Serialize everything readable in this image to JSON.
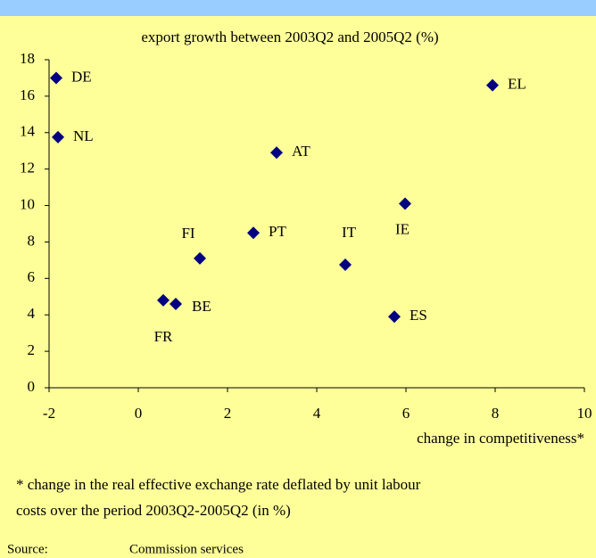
{
  "chart_data": {
    "type": "scatter",
    "title": "export growth between  2003Q2 and 2005Q2 (%)",
    "x_label": "change in competitiveness*",
    "labels": [
      "DE",
      "NL",
      "AT",
      "EL",
      "IE",
      "PT",
      "FI",
      "IT",
      "FR",
      "BE",
      "ES"
    ],
    "x": [
      -1.84,
      -1.8,
      3.1,
      7.94,
      5.98,
      2.58,
      1.38,
      4.64,
      0.56,
      0.84,
      5.74
    ],
    "values": [
      17.0,
      13.75,
      12.9,
      16.6,
      10.1,
      8.5,
      7.1,
      6.75,
      4.8,
      4.6,
      3.9
    ],
    "color": "#000080",
    "xlim": [
      -2,
      10
    ],
    "xticks": [
      -2,
      0,
      2,
      4,
      6,
      8,
      10
    ],
    "ylim": [
      0,
      18
    ],
    "yticks": [
      0,
      2,
      4,
      6,
      8,
      10,
      12,
      14,
      16,
      18
    ],
    "footnote": [
      "* change in the real effective exchange rate deflated by unit labour",
      "costs over the period 2003Q2-2005Q2 (in %)"
    ],
    "source_label": "Source:",
    "source": "Commission services"
  }
}
